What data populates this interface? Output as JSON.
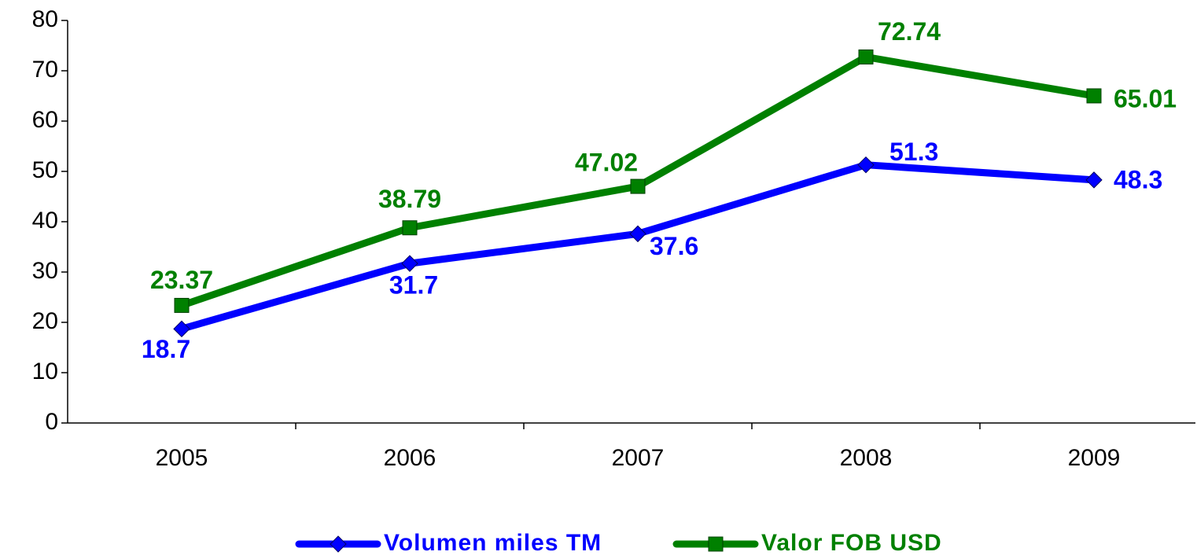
{
  "chart_data": {
    "type": "line",
    "categories": [
      "2005",
      "2006",
      "2007",
      "2008",
      "2009"
    ],
    "series": [
      {
        "name": "Volumen miles TM",
        "color": "#0000ff",
        "marker": "diamond",
        "values": [
          18.7,
          31.7,
          37.6,
          51.3,
          48.3
        ]
      },
      {
        "name": "Valor FOB USD",
        "color": "#008000",
        "marker": "square",
        "values": [
          23.37,
          38.79,
          47.02,
          72.74,
          65.01
        ]
      }
    ],
    "ylim": [
      0,
      80
    ],
    "yticks": [
      0,
      10,
      20,
      30,
      40,
      50,
      60,
      70,
      80
    ],
    "grid": false,
    "legend": "bottom"
  }
}
